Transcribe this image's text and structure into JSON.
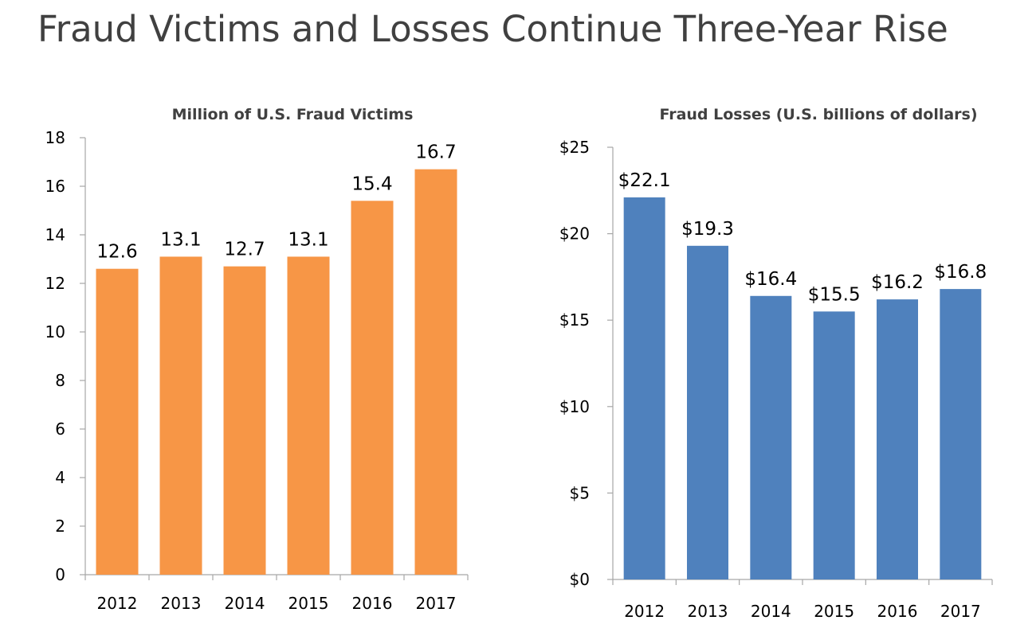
{
  "page": {
    "title": "Fraud Victims and Losses Continue Three-Year Rise"
  },
  "chart_data": [
    {
      "type": "bar",
      "title": "Million of U.S. Fraud Victims",
      "xlabel": "",
      "ylabel": "",
      "categories": [
        "2012",
        "2013",
        "2014",
        "2015",
        "2016",
        "2017"
      ],
      "values": [
        12.6,
        13.1,
        12.7,
        13.1,
        15.4,
        16.7
      ],
      "data_labels": [
        "12.6",
        "13.1",
        "12.7",
        "13.1",
        "15.4",
        "16.7"
      ],
      "ylim": [
        0,
        18
      ],
      "y_ticks": [
        0,
        2,
        4,
        6,
        8,
        10,
        12,
        14,
        16,
        18
      ],
      "y_tick_labels": [
        "0",
        "2",
        "4",
        "6",
        "8",
        "10",
        "12",
        "14",
        "16",
        "18"
      ],
      "color": "#f79646",
      "grid": false,
      "legend": "none"
    },
    {
      "type": "bar",
      "title": "Fraud Losses (U.S. billions of dollars)",
      "xlabel": "",
      "ylabel": "",
      "categories": [
        "2012",
        "2013",
        "2014",
        "2015",
        "2016",
        "2017"
      ],
      "values": [
        22.1,
        19.3,
        16.4,
        15.5,
        16.2,
        16.8
      ],
      "data_labels": [
        "$22.1",
        "$19.3",
        "$16.4",
        "$15.5",
        "$16.2",
        "$16.8"
      ],
      "ylim": [
        0,
        25
      ],
      "y_ticks": [
        0,
        5,
        10,
        15,
        20,
        25
      ],
      "y_tick_labels": [
        "$0",
        "$5",
        "$10",
        "$15",
        "$20",
        "$25"
      ],
      "color": "#4f81bd",
      "grid": false,
      "legend": "none"
    }
  ]
}
